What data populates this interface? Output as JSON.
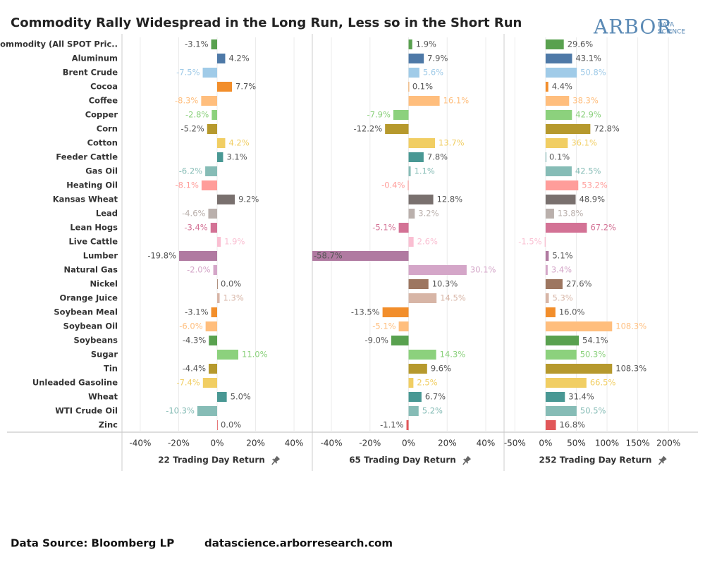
{
  "title": "Commodity Rally Widespread in the Long Run, Less so in the Short Run",
  "logo": {
    "main": "ARBOR",
    "sub": [
      "DATA",
      "SCIENCE"
    ]
  },
  "source": "Data Source: Bloomberg LP",
  "website": "datascience.arborresearch.com",
  "chart_data": {
    "type": "bar",
    "orientation": "horizontal",
    "grid": true,
    "categories": [
      "Commodity (All SPOT Pric..",
      "Aluminum",
      "Brent Crude",
      "Cocoa",
      "Coffee",
      "Copper",
      "Corn",
      "Cotton",
      "Feeder Cattle",
      "Gas Oil",
      "Heating Oil",
      "Kansas Wheat",
      "Lead",
      "Lean Hogs",
      "Live Cattle",
      "Lumber",
      "Natural Gas",
      "Nickel",
      "Orange Juice",
      "Soybean Meal",
      "Soybean Oil",
      "Soybeans",
      "Sugar",
      "Tin",
      "Unleaded Gasoline",
      "Wheat",
      "WTI Crude Oil",
      "Zinc"
    ],
    "colors": [
      "#59a14f",
      "#4e79a7",
      "#a0cbe8",
      "#f28e2b",
      "#ffbe7d",
      "#8cd17d",
      "#b6992d",
      "#f1ce63",
      "#499894",
      "#86bcb6",
      "#ff9d9a",
      "#79706e",
      "#bab0ac",
      "#d37295",
      "#fabfd2",
      "#b07aa1",
      "#d4a6c8",
      "#9d7660",
      "#d7b5a6",
      "#f28e2b",
      "#ffbe7d",
      "#59a14f",
      "#8cd17d",
      "#b6992d",
      "#f1ce63",
      "#499894",
      "#86bcb6",
      "#e15759"
    ],
    "label_colors": [
      "#555555",
      "#555555",
      "#a0cbe8",
      "#555555",
      "#ffbe7d",
      "#8cd17d",
      "#555555",
      "#f1ce63",
      "#555555",
      "#86bcb6",
      "#ff9d9a",
      "#555555",
      "#bab0ac",
      "#d37295",
      "#fabfd2",
      "#555555",
      "#d4a6c8",
      "#555555",
      "#d7b5a6",
      "#555555",
      "#ffbe7d",
      "#555555",
      "#8cd17d",
      "#555555",
      "#f1ce63",
      "#555555",
      "#86bcb6",
      "#555555"
    ],
    "panels": [
      {
        "xlabel": "22 Trading Day Return",
        "values": [
          -3.1,
          4.2,
          -7.5,
          7.7,
          -8.3,
          -2.8,
          -5.2,
          4.2,
          3.1,
          -6.2,
          -8.1,
          9.2,
          -4.6,
          -3.4,
          1.9,
          -19.8,
          -2.0,
          0.0,
          1.3,
          -3.1,
          -6.0,
          -4.3,
          11.0,
          -4.4,
          -7.4,
          5.0,
          -10.3,
          0.0
        ],
        "value_labels": [
          "-3.1%",
          "4.2%",
          "-7.5%",
          "7.7%",
          "-8.3%",
          "-2.8%",
          "-5.2%",
          "4.2%",
          "3.1%",
          "-6.2%",
          "-8.1%",
          "9.2%",
          "-4.6%",
          "-3.4%",
          "1.9%",
          "-19.8%",
          "-2.0%",
          "0.0%",
          "1.3%",
          "-3.1%",
          "-6.0%",
          "-4.3%",
          "11.0%",
          "-4.4%",
          "-7.4%",
          "5.0%",
          "-10.3%",
          "0.0%"
        ],
        "xlim": [
          -49.5,
          49.5
        ],
        "xticks": [
          {
            "value": -40,
            "label": "-40%"
          },
          {
            "value": -20,
            "label": "-20%"
          },
          {
            "value": 0,
            "label": "0%"
          },
          {
            "value": 20,
            "label": "20%"
          },
          {
            "value": 40,
            "label": "40%"
          }
        ]
      },
      {
        "xlabel": "65 Trading Day Return",
        "values": [
          1.9,
          7.9,
          5.6,
          0.1,
          16.1,
          -7.9,
          -12.2,
          13.7,
          7.8,
          1.1,
          -0.4,
          12.8,
          3.2,
          -5.1,
          2.6,
          -58.7,
          30.1,
          10.3,
          14.5,
          -13.5,
          -5.1,
          -9.0,
          14.3,
          9.6,
          2.5,
          6.7,
          5.2,
          -1.1
        ],
        "value_labels": [
          "1.9%",
          "7.9%",
          "5.6%",
          "0.1%",
          "16.1%",
          "-7.9%",
          "-12.2%",
          "13.7%",
          "7.8%",
          "1.1%",
          "-0.4%",
          "12.8%",
          "3.2%",
          "-5.1%",
          "2.6%",
          "-58.7%",
          "30.1%",
          "10.3%",
          "14.5%",
          "-13.5%",
          "-5.1%",
          "-9.0%",
          "14.3%",
          "9.6%",
          "2.5%",
          "6.7%",
          "5.2%",
          "-1.1%"
        ],
        "xlim": [
          -49.9,
          49.5
        ],
        "xticks": [
          {
            "value": -40,
            "label": "-40%"
          },
          {
            "value": -20,
            "label": "-20%"
          },
          {
            "value": 0,
            "label": "0%"
          },
          {
            "value": 20,
            "label": "20%"
          },
          {
            "value": 40,
            "label": "40%"
          }
        ]
      },
      {
        "xlabel": "252 Trading Day Return",
        "values": [
          29.6,
          43.1,
          50.8,
          4.4,
          38.3,
          42.9,
          72.8,
          36.1,
          0.1,
          42.5,
          53.2,
          48.9,
          13.8,
          67.2,
          -1.5,
          5.1,
          3.4,
          27.6,
          5.3,
          16.0,
          108.3,
          54.1,
          50.3,
          108.3,
          66.5,
          31.4,
          50.5,
          16.8
        ],
        "value_labels": [
          "29.6%",
          "43.1%",
          "50.8%",
          "4.4%",
          "38.3%",
          "42.9%",
          "72.8%",
          "36.1%",
          "0.1%",
          "42.5%",
          "53.2%",
          "48.9%",
          "13.8%",
          "67.2%",
          "-1.5%",
          "5.1%",
          "3.4%",
          "27.6%",
          "5.3%",
          "16.0%",
          "108.3%",
          "54.1%",
          "50.3%",
          "108.3%",
          "66.5%",
          "31.4%",
          "50.5%",
          "16.8%"
        ],
        "xlim": [
          -67.6,
          248
        ],
        "xticks": [
          {
            "value": -50,
            "label": "-50%"
          },
          {
            "value": 0,
            "label": "0%"
          },
          {
            "value": 50,
            "label": "50%"
          },
          {
            "value": 100,
            "label": "100%"
          },
          {
            "value": 150,
            "label": "150%"
          },
          {
            "value": 200,
            "label": "200%"
          }
        ]
      }
    ]
  }
}
